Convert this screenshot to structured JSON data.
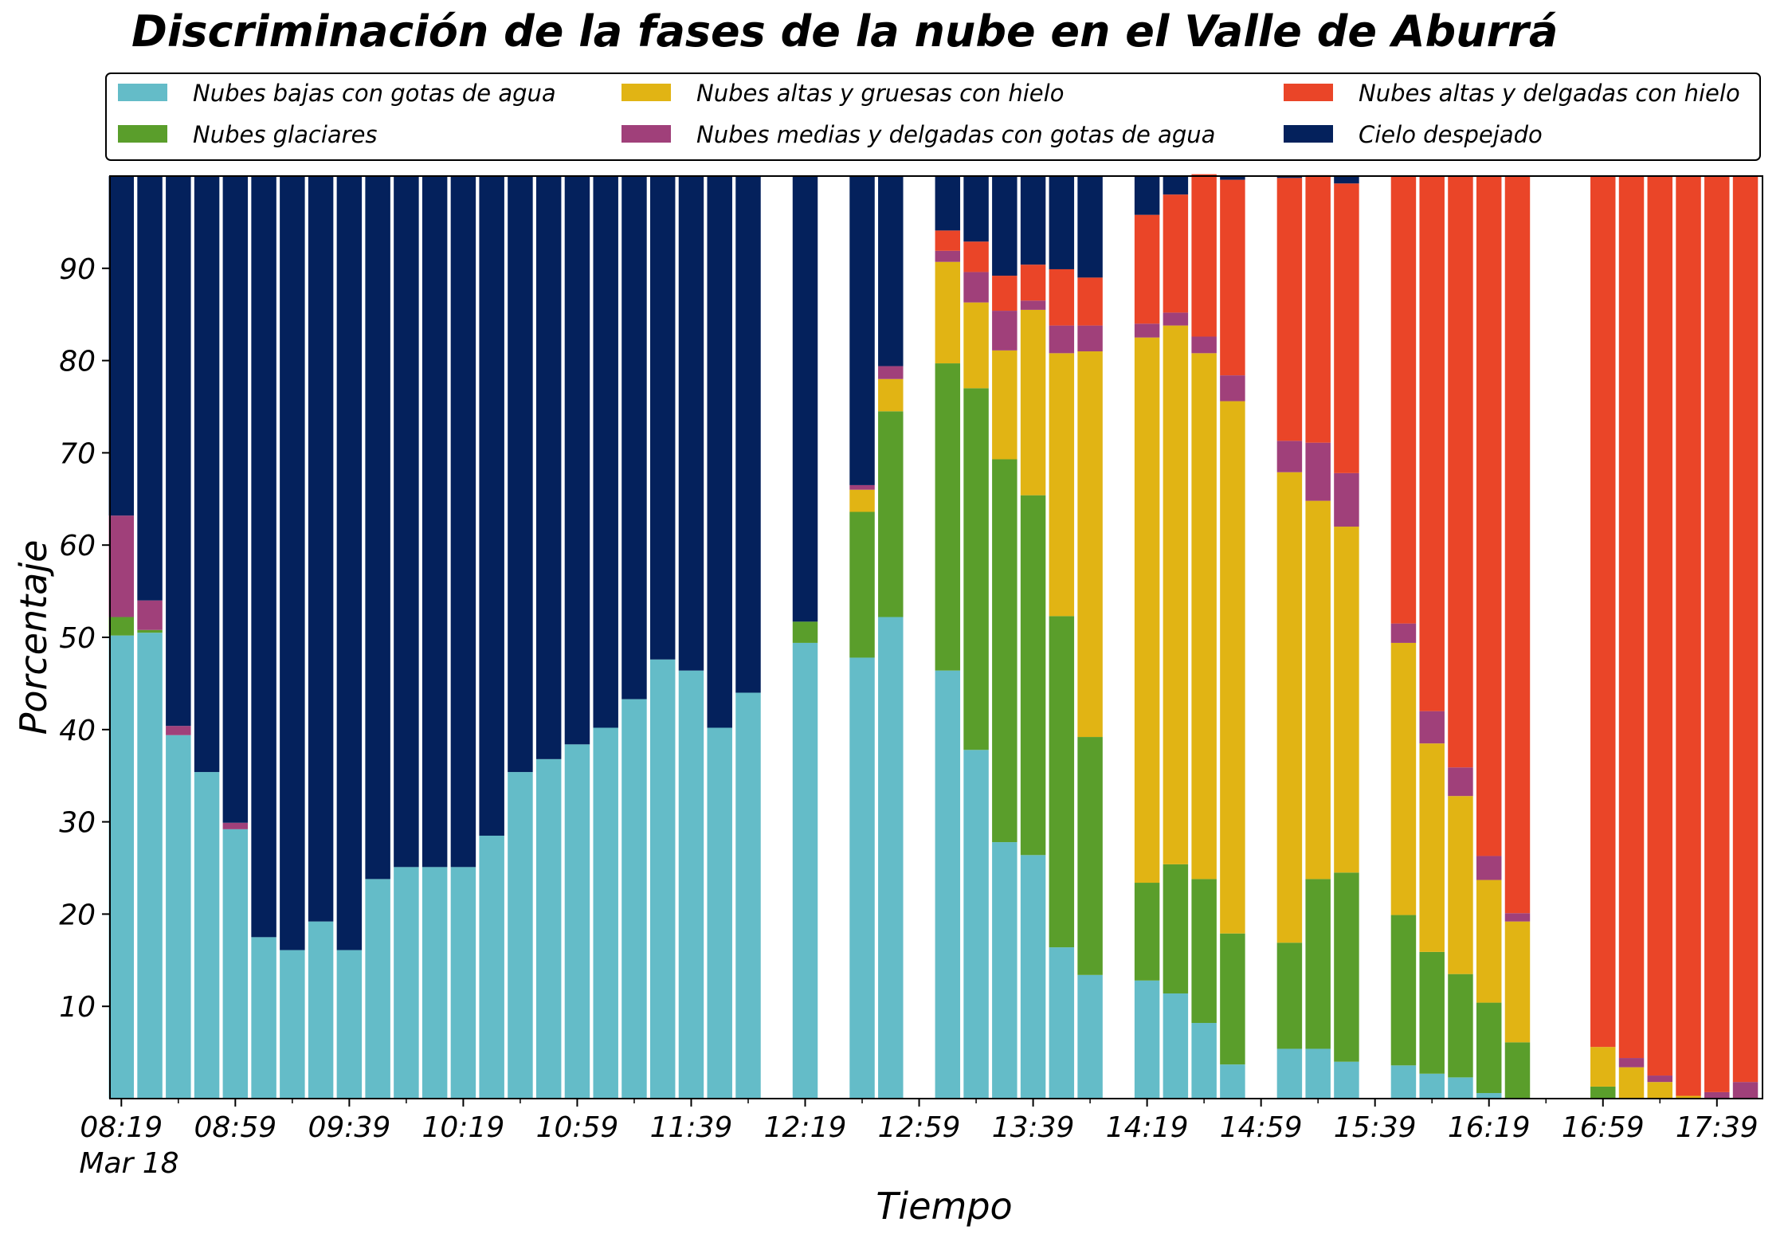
{
  "chart_data": {
    "type": "bar",
    "stacked": true,
    "title": "Discriminación de la fases de la nube en el Valle de Aburrá",
    "xlabel": "Tiempo",
    "ylabel": "Porcentaje",
    "ylim": [
      0,
      100
    ],
    "yticks": [
      10,
      20,
      30,
      40,
      50,
      60,
      70,
      80,
      90
    ],
    "xrange_minutes": [
      495,
      1075
    ],
    "xtick_minutes": [
      499,
      539,
      579,
      619,
      659,
      699,
      739,
      779,
      819,
      859,
      899,
      939,
      979,
      1019,
      1059
    ],
    "xtick_labels": [
      "08:19",
      "08:59",
      "09:39",
      "10:19",
      "10:59",
      "11:39",
      "12:19",
      "12:59",
      "13:39",
      "14:19",
      "14:59",
      "15:39",
      "16:19",
      "16:59",
      "17:39"
    ],
    "xtick_sublabel": "Mar 18",
    "legend_position": "top",
    "grid": false,
    "x": [
      "08:19",
      "08:29",
      "08:39",
      "08:49",
      "08:59",
      "09:09",
      "09:19",
      "09:29",
      "09:39",
      "09:49",
      "09:59",
      "10:09",
      "10:19",
      "10:29",
      "10:39",
      "10:49",
      "10:59",
      "11:09",
      "11:19",
      "11:29",
      "11:39",
      "11:49",
      "11:59",
      "12:09",
      "12:19",
      "12:29",
      "12:39",
      "12:49",
      "12:59",
      "13:09",
      "13:19",
      "13:29",
      "13:39",
      "13:49",
      "13:59",
      "14:09",
      "14:19",
      "14:29",
      "14:39",
      "14:49",
      "14:59",
      "15:09",
      "15:19",
      "15:29",
      "15:39",
      "15:49",
      "15:59",
      "16:09",
      "16:19",
      "16:29",
      "16:39",
      "16:49",
      "16:59",
      "17:09",
      "17:19",
      "17:29",
      "17:39",
      "17:49"
    ],
    "series": [
      {
        "name": "Nubes bajas con gotas de agua",
        "color": "#64bcc8",
        "values": [
          50.2,
          50.5,
          39.4,
          35.4,
          29.2,
          17.5,
          16.1,
          19.2,
          16.1,
          23.8,
          25.1,
          25.1,
          25.1,
          28.5,
          35.4,
          36.8,
          38.4,
          40.2,
          43.3,
          47.6,
          46.4,
          40.2,
          44.0,
          0,
          49.4,
          0,
          47.8,
          52.2,
          0,
          46.4,
          37.8,
          27.8,
          26.4,
          16.4,
          13.4,
          0,
          12.8,
          11.4,
          8.2,
          3.7,
          0,
          5.4,
          5.4,
          4.0,
          0,
          3.6,
          2.7,
          2.3,
          0.6,
          0,
          0,
          0,
          0,
          0,
          0,
          0,
          0,
          0
        ]
      },
      {
        "name": "Nubes glaciares",
        "color": "#5a9e2b",
        "values": [
          2.0,
          0.3,
          0,
          0,
          0,
          0,
          0,
          0,
          0,
          0,
          0,
          0,
          0,
          0,
          0,
          0,
          0,
          0,
          0,
          0,
          0,
          0,
          0,
          0,
          2.3,
          0,
          15.8,
          22.3,
          0,
          33.3,
          39.2,
          41.5,
          39.0,
          35.9,
          25.8,
          0,
          10.6,
          14.0,
          15.6,
          14.2,
          0,
          11.5,
          18.4,
          20.5,
          0,
          16.3,
          13.2,
          11.2,
          9.8,
          6.1,
          0,
          0,
          1.3,
          0,
          0,
          0,
          0,
          0
        ]
      },
      {
        "name": "Nubes altas y gruesas con hielo",
        "color": "#e1b414",
        "values": [
          0,
          0,
          0,
          0,
          0,
          0,
          0,
          0,
          0,
          0,
          0,
          0,
          0,
          0,
          0,
          0,
          0,
          0,
          0,
          0,
          0,
          0,
          0,
          0,
          0,
          0,
          2.4,
          3.5,
          0,
          11.0,
          9.3,
          11.8,
          20.1,
          28.5,
          41.8,
          0,
          59.1,
          58.4,
          57.0,
          57.7,
          0,
          51.0,
          41.0,
          37.5,
          0,
          29.5,
          22.6,
          19.3,
          13.3,
          13.1,
          0,
          0,
          4.3,
          3.4,
          1.8,
          0.3,
          0,
          0
        ]
      },
      {
        "name": "Nubes medias y delgadas con gotas de agua",
        "color": "#a0407a",
        "values": [
          11.0,
          3.2,
          1.0,
          0,
          0.7,
          0,
          0,
          0,
          0,
          0,
          0,
          0,
          0,
          0,
          0,
          0,
          0,
          0,
          0,
          0,
          0,
          0,
          0,
          0,
          0,
          0,
          0.5,
          1.4,
          0,
          1.2,
          3.3,
          4.3,
          1.0,
          3.0,
          2.8,
          0,
          1.5,
          1.4,
          1.8,
          2.8,
          0,
          3.4,
          6.3,
          5.8,
          0,
          2.1,
          3.5,
          3.1,
          2.6,
          0.9,
          0,
          0,
          0,
          1.0,
          0.7,
          0,
          0.7,
          1.8
        ]
      },
      {
        "name": "Nubes altas y delgadas con hielo",
        "color": "#ea4528",
        "values": [
          0,
          0,
          0,
          0,
          0,
          0,
          0,
          0,
          0,
          0,
          0,
          0,
          0,
          0,
          0,
          0,
          0,
          0,
          0,
          0,
          0,
          0,
          0,
          0,
          0,
          0,
          0,
          0,
          0,
          2.2,
          3.3,
          3.8,
          3.9,
          6.1,
          5.2,
          0,
          11.8,
          12.8,
          17.6,
          21.2,
          0,
          28.5,
          29.0,
          31.4,
          0,
          48.5,
          58.0,
          64.1,
          73.7,
          79.9,
          0,
          0,
          94.4,
          95.6,
          97.5,
          99.7,
          99.3,
          98.2
        ]
      },
      {
        "name": "Cielo despejado",
        "color": "#04215c",
        "values": [
          36.8,
          46.0,
          59.6,
          64.6,
          70.1,
          82.5,
          83.9,
          80.8,
          83.9,
          76.2,
          74.9,
          74.9,
          74.9,
          71.5,
          64.6,
          63.2,
          61.6,
          59.8,
          56.7,
          52.4,
          53.6,
          59.8,
          56.0,
          0,
          48.3,
          0,
          33.5,
          20.6,
          0,
          5.9,
          7.1,
          10.8,
          9.6,
          10.1,
          11.0,
          0,
          4.2,
          2.0,
          0,
          0.4,
          0,
          0.2,
          0,
          0.8,
          0,
          0,
          0,
          0,
          0,
          0,
          0,
          0,
          0,
          0,
          0,
          0,
          0,
          0
        ]
      }
    ]
  }
}
